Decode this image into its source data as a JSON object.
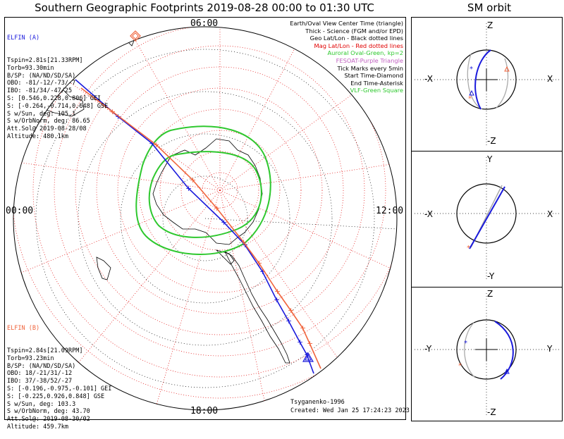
{
  "title": "Southern Geographic Footprints 2019-08-28 00:00 to 01:30 UTC",
  "orbit_title": "SM orbit",
  "clock_labels": {
    "top": "06:00",
    "left": "00:00",
    "right": "12:00",
    "bottom": "18:00"
  },
  "elfin_a": {
    "name": "ELFIN (A)",
    "lines": [
      "Tspin=2.81s[21.33RPM]",
      "Torb=93.30min",
      "B/SP: (NA/ND/SD/SA)",
      "OBO: -81/-12/-73/-7",
      "IBO: -81/34/-47/25",
      "S: [0.546,0.228,0.806] GEI",
      "S: [-0.264,-0.714,0.648] GSE",
      "S w/Sun, deg: 105.1",
      "S w/OrbNorm, deg: 86.65",
      "Att.Sol@ 2019-08-28/08",
      "Altitude: 480.1km"
    ],
    "color": "#1a1adc"
  },
  "elfin_b": {
    "name": "ELFIN (B)",
    "lines": [
      "Tspin=2.84s[21.09RPM]",
      "Torb=93.23min",
      "B/SP: (NA/ND/SD/SA)",
      "OBO: 18/-21/31/-12",
      "IBO: 37/-38/52/-27",
      "S: [-0.196,-0.975,-0.101] GEI",
      "S: [-0.225,0.926,0.848] GSE",
      "S w/Sun, deg: 103.3",
      "S w/OrbNorm, deg: 43.70",
      "Att.Sol@: 2019-08-30/02",
      "Altitude: 459.7km"
    ],
    "color": "#f0643c"
  },
  "legend": [
    {
      "text": "Earth/Oval View Center Time (triangle)",
      "color": "#000000"
    },
    {
      "text": "Thick - Science (FGM and/or EPD)",
      "color": "#000000"
    },
    {
      "text": "Geo Lat/Lon - Black dotted lines",
      "color": "#000000"
    },
    {
      "text": "Mag Lat/Lon - Red dotted lines",
      "color": "#e00000"
    },
    {
      "text": "Auroral Oval-Green, kp=2",
      "color": "#2ec82e"
    },
    {
      "text": "FESOAT-Purple Triangle",
      "color": "#c060c0"
    },
    {
      "text": "Tick Marks every 5min",
      "color": "#000000"
    },
    {
      "text": "Start Time-Diamond",
      "color": "#000000"
    },
    {
      "text": "End Time-Asterisk",
      "color": "#000000"
    },
    {
      "text": "VLF-Green Square",
      "color": "#2ec82e"
    }
  ],
  "credit": {
    "author": "Tsyganenko-1996",
    "created": "Created: Wed Jan 25 17:24:23 2023"
  },
  "panels": [
    {
      "top": "Z",
      "bottom": "-Z",
      "left": "-X",
      "right": "X"
    },
    {
      "top": "Y",
      "bottom": "-Y",
      "left": "-X",
      "right": "X"
    },
    {
      "top": "Z",
      "bottom": "-Z",
      "left": "-Y",
      "right": "Y"
    }
  ],
  "colors": {
    "elfin_a": "#1a1adc",
    "elfin_b": "#f0643c",
    "oval": "#2ec82e",
    "mag_grid": "#e00000",
    "geo_grid": "#000000",
    "orbit_gray": "#aaaaaa"
  }
}
